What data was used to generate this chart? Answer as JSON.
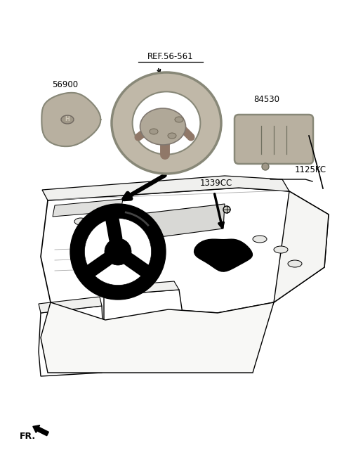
{
  "bg_color": "#ffffff",
  "line_color": "#000000",
  "text_color": "#000000",
  "gray_fill": "#c8c8c8",
  "light_gray": "#e8e8e8",
  "mid_gray": "#aaaaaa",
  "dark_gray": "#888888",
  "labels": {
    "ref": "REF.56-561",
    "part1": "56900",
    "part2": "84530",
    "part3": "1339CC",
    "part4": "1125KC",
    "corner": "FR."
  },
  "fig_w": 4.8,
  "fig_h": 6.57,
  "dpi": 100
}
